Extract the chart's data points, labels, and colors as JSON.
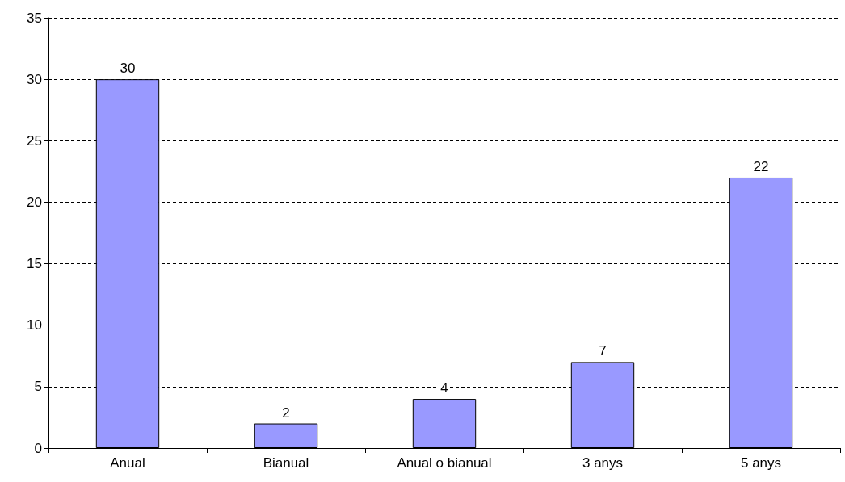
{
  "chart_data": {
    "type": "bar",
    "categories": [
      "Anual",
      "Bianual",
      "Anual o bianual",
      "3 anys",
      "5 anys"
    ],
    "values": [
      30,
      2,
      4,
      7,
      22
    ],
    "color": "#9999ff",
    "ylim": [
      0,
      35
    ],
    "yticks": [
      0,
      5,
      10,
      15,
      20,
      25,
      30,
      35
    ],
    "grid": "y",
    "data_labels": true
  }
}
